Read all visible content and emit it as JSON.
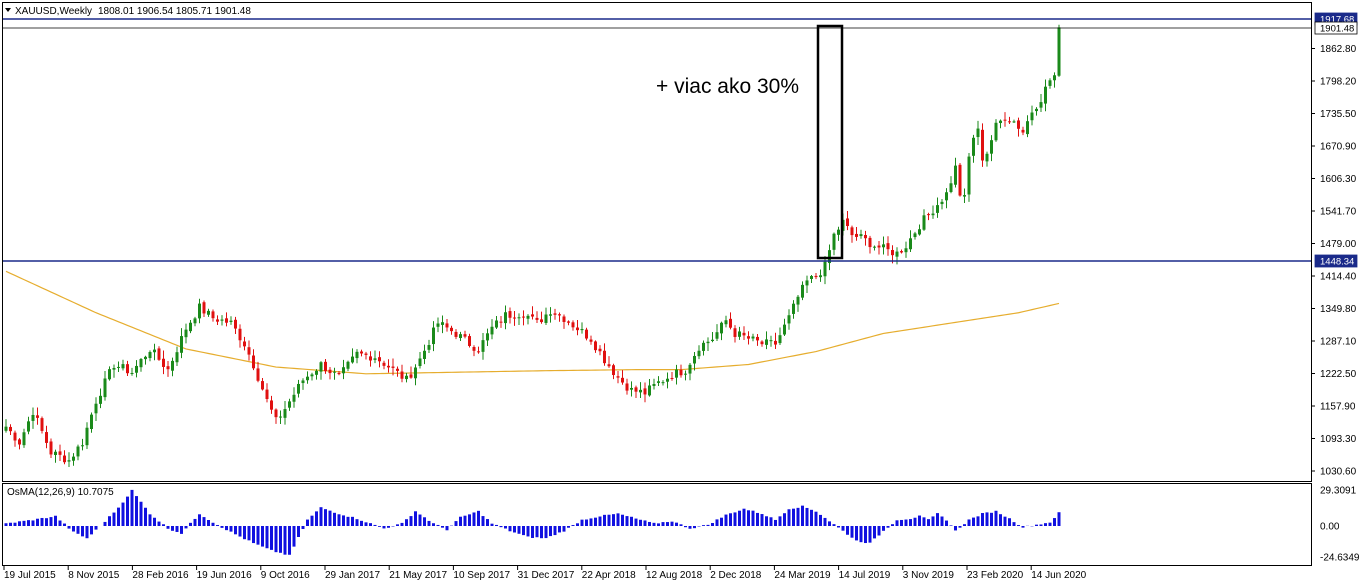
{
  "header": {
    "symbol": "XAUUSD,Weekly",
    "ohlc": "1808.01 1906.54 1805.71 1901.48"
  },
  "indicator_title": "OsMA(12,26,9) 10.7075",
  "annotation": "+ viac ako 30%",
  "colors": {
    "bull": "#1a8a1a",
    "bear": "#e01010",
    "ma": "#e6ad2e",
    "level": "#1a2a8a",
    "osma": "#1010e0",
    "grid_border": "#000000"
  },
  "chart_data": [
    {
      "type": "candlestick",
      "title": "XAUUSD,Weekly",
      "y_ticks": [
        "1862.80",
        "1798.20",
        "1735.50",
        "1670.90",
        "1606.30",
        "1541.70",
        "1479.00",
        "1414.40",
        "1349.80",
        "1287.10",
        "1222.50",
        "1157.90",
        "1093.30",
        "1030.60"
      ],
      "x_ticks": [
        "19 Jul 2015",
        "8 Nov 2015",
        "28 Feb 2016",
        "19 Jun 2016",
        "9 Oct 2016",
        "29 Jan 2017",
        "21 May 2017",
        "10 Sep 2017",
        "31 Dec 2017",
        "22 Apr 2018",
        "12 Aug 2018",
        "2 Dec 2018",
        "24 Mar 2019",
        "14 Jul 2019",
        "3 Nov 2019",
        "23 Feb 2020",
        "14 Jun 2020"
      ],
      "ylim": [
        1030.6,
        1917.68
      ],
      "levels": [
        {
          "label": "1917.68",
          "value": 1917.68
        },
        {
          "label": "1901.48",
          "value": 1901.48
        },
        {
          "label": "1448.34",
          "value": 1448.34
        }
      ],
      "close_anchors": [
        [
          0,
          1130
        ],
        [
          3,
          1100
        ],
        [
          6,
          1160
        ],
        [
          8,
          1120
        ],
        [
          10,
          1080
        ],
        [
          14,
          1065
        ],
        [
          17,
          1100
        ],
        [
          20,
          1180
        ],
        [
          24,
          1250
        ],
        [
          28,
          1235
        ],
        [
          32,
          1280
        ],
        [
          36,
          1240
        ],
        [
          40,
          1320
        ],
        [
          43,
          1360
        ],
        [
          46,
          1340
        ],
        [
          50,
          1330
        ],
        [
          53,
          1290
        ],
        [
          55,
          1250
        ],
        [
          58,
          1180
        ],
        [
          60,
          1140
        ],
        [
          62,
          1165
        ],
        [
          66,
          1220
        ],
        [
          70,
          1250
        ],
        [
          74,
          1225
        ],
        [
          78,
          1270
        ],
        [
          82,
          1265
        ],
        [
          86,
          1240
        ],
        [
          89,
          1220
        ],
        [
          92,
          1260
        ],
        [
          96,
          1330
        ],
        [
          100,
          1310
        ],
        [
          103,
          1290
        ],
        [
          105,
          1280
        ],
        [
          108,
          1320
        ],
        [
          111,
          1345
        ],
        [
          115,
          1350
        ],
        [
          118,
          1330
        ],
        [
          121,
          1355
        ],
        [
          124,
          1340
        ],
        [
          127,
          1320
        ],
        [
          130,
          1300
        ],
        [
          133,
          1260
        ],
        [
          136,
          1225
        ],
        [
          139,
          1200
        ],
        [
          142,
          1195
        ],
        [
          145,
          1215
        ],
        [
          148,
          1230
        ],
        [
          151,
          1240
        ],
        [
          154,
          1285
        ],
        [
          157,
          1300
        ],
        [
          160,
          1335
        ],
        [
          162,
          1310
        ],
        [
          165,
          1300
        ],
        [
          168,
          1290
        ],
        [
          171,
          1290
        ],
        [
          174,
          1340
        ],
        [
          176,
          1380
        ],
        [
          178,
          1410
        ],
        [
          180,
          1420
        ],
        [
          182,
          1440
        ],
        [
          184,
          1500
        ],
        [
          186,
          1525
        ],
        [
          188,
          1500
        ],
        [
          190,
          1495
        ],
        [
          193,
          1480
        ],
        [
          196,
          1470
        ],
        [
          198,
          1465
        ],
        [
          200,
          1480
        ],
        [
          203,
          1520
        ],
        [
          206,
          1550
        ],
        [
          209,
          1580
        ],
        [
          211,
          1630
        ],
        [
          212,
          1580
        ],
        [
          213,
          1570
        ],
        [
          214,
          1650
        ],
        [
          215,
          1690
        ],
        [
          216,
          1700
        ],
        [
          217,
          1650
        ],
        [
          218,
          1660
        ],
        [
          220,
          1710
        ],
        [
          222,
          1730
        ],
        [
          224,
          1720
        ],
        [
          226,
          1700
        ],
        [
          228,
          1740
        ],
        [
          230,
          1765
        ],
        [
          232,
          1800
        ],
        [
          233,
          1808
        ],
        [
          234,
          1901.48
        ]
      ],
      "ma_anchors": [
        [
          0,
          1430
        ],
        [
          20,
          1350
        ],
        [
          40,
          1280
        ],
        [
          60,
          1245
        ],
        [
          80,
          1232
        ],
        [
          100,
          1235
        ],
        [
          120,
          1238
        ],
        [
          140,
          1240
        ],
        [
          150,
          1240
        ],
        [
          165,
          1250
        ],
        [
          180,
          1275
        ],
        [
          195,
          1310
        ],
        [
          210,
          1330
        ],
        [
          225,
          1350
        ],
        [
          234,
          1368
        ]
      ],
      "series": [
        {
          "name": "Moving Average",
          "values": []
        }
      ]
    },
    {
      "type": "bar",
      "title": "OsMA(12,26,9) 10.7075",
      "y_ticks": [
        "29.3091",
        "0.00",
        "-24.6349"
      ],
      "ylim": [
        -24.6349,
        29.3091
      ],
      "value_anchors": [
        [
          0,
          2
        ],
        [
          6,
          5
        ],
        [
          11,
          8
        ],
        [
          15,
          -5
        ],
        [
          18,
          -10
        ],
        [
          21,
          0
        ],
        [
          25,
          15
        ],
        [
          28,
          29
        ],
        [
          32,
          10
        ],
        [
          36,
          -2
        ],
        [
          39,
          -6
        ],
        [
          43,
          10
        ],
        [
          46,
          3
        ],
        [
          50,
          -5
        ],
        [
          55,
          -14
        ],
        [
          59,
          -20
        ],
        [
          63,
          -24
        ],
        [
          67,
          5
        ],
        [
          70,
          15
        ],
        [
          74,
          10
        ],
        [
          78,
          6
        ],
        [
          81,
          2
        ],
        [
          84,
          -2
        ],
        [
          88,
          2
        ],
        [
          91,
          12
        ],
        [
          95,
          2
        ],
        [
          98,
          -3
        ],
        [
          101,
          7
        ],
        [
          105,
          12
        ],
        [
          108,
          2
        ],
        [
          112,
          -4
        ],
        [
          116,
          -9
        ],
        [
          120,
          -10
        ],
        [
          124,
          -4
        ],
        [
          128,
          5
        ],
        [
          132,
          8
        ],
        [
          136,
          10
        ],
        [
          140,
          6
        ],
        [
          144,
          2
        ],
        [
          148,
          4
        ],
        [
          152,
          -2
        ],
        [
          156,
          1
        ],
        [
          160,
          9
        ],
        [
          164,
          14
        ],
        [
          168,
          10
        ],
        [
          171,
          5
        ],
        [
          174,
          14
        ],
        [
          177,
          16
        ],
        [
          180,
          12
        ],
        [
          183,
          4
        ],
        [
          186,
          -4
        ],
        [
          189,
          -12
        ],
        [
          192,
          -14
        ],
        [
          195,
          -4
        ],
        [
          198,
          5
        ],
        [
          201,
          6
        ],
        [
          203,
          8
        ],
        [
          205,
          5
        ],
        [
          207,
          10
        ],
        [
          209,
          5
        ],
        [
          211,
          -4
        ],
        [
          214,
          5
        ],
        [
          217,
          10
        ],
        [
          220,
          12
        ],
        [
          223,
          6
        ],
        [
          226,
          -1
        ],
        [
          229,
          1
        ],
        [
          232,
          3
        ],
        [
          234,
          10.7
        ]
      ]
    }
  ]
}
